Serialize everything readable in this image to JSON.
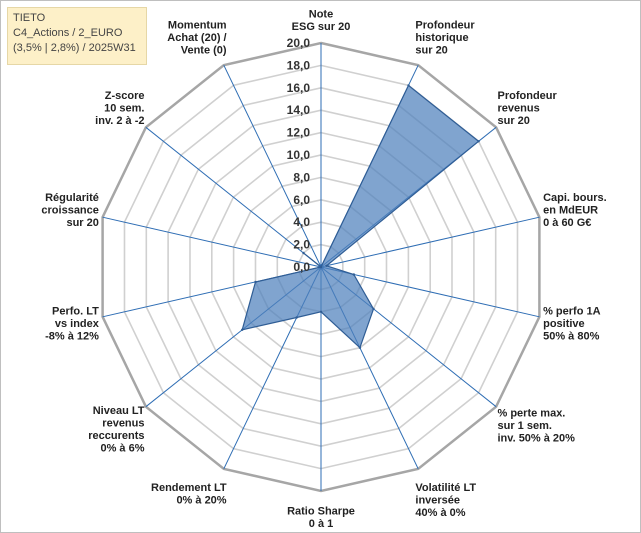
{
  "info_box": {
    "line1": "TIETO",
    "line2": "C4_Actions / 2_EURO",
    "line3": "(3,5% | 2,8%) / 2025W31"
  },
  "colors": {
    "fill": "#4f81bd",
    "stroke": "#2f5d95",
    "grid": "#d0d0d0",
    "axis": "#2e6db4"
  },
  "chart_data": {
    "type": "radar",
    "rmin": 0,
    "rmax": 20,
    "tick_step": 2,
    "tick_labels": [
      "0,0",
      "2,0",
      "4,0",
      "6,0",
      "8,0",
      "10,0",
      "12,0",
      "14,0",
      "16,0",
      "18,0",
      "20,0"
    ],
    "grid": true,
    "legend": "none",
    "categories": [
      [
        "Note",
        "ESG sur 20"
      ],
      [
        "Profondeur",
        "historique",
        "sur 20"
      ],
      [
        "Profondeur",
        "revenus",
        "sur 20"
      ],
      [
        "Capi. bours.",
        "en MdEUR",
        "0 à 60 G€"
      ],
      [
        "% perfo 1A",
        "positive",
        "50% à 80%"
      ],
      [
        "% perte max.",
        "sur 1 sem.",
        "inv. 50% à 20%"
      ],
      [
        "Volatilité LT",
        "inversée",
        "40% à 0%"
      ],
      [
        "Ratio Sharpe",
        "0 à 1"
      ],
      [
        "Rendement LT",
        "0% à 20%"
      ],
      [
        "Niveau LT",
        "revenus",
        "reccurents",
        "0% à 6%"
      ],
      [
        "Perfo. LT",
        "vs index",
        "-8% à 12%"
      ],
      [
        "Régularité",
        "croissance",
        "sur 20"
      ],
      [
        "Z-score",
        "10 sem.",
        "inv. 2 à -2"
      ],
      [
        "Momentum",
        "Achat (20) /",
        "Vente (0)"
      ]
    ],
    "series": [
      {
        "values": [
          0,
          18,
          18,
          0.5,
          3,
          6,
          8,
          4,
          5,
          9,
          6,
          0,
          2,
          0
        ]
      }
    ]
  }
}
